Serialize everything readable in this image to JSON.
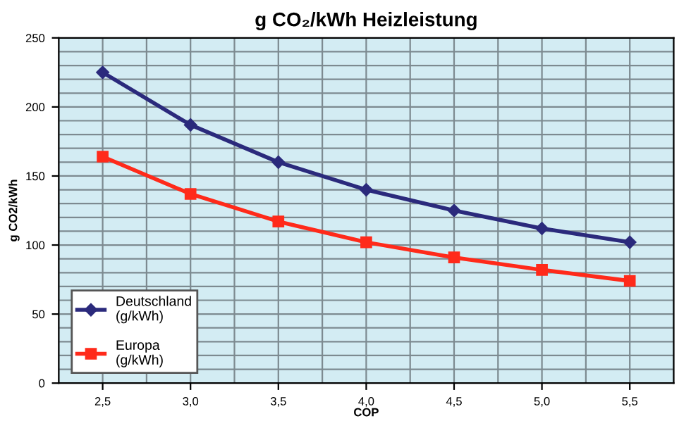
{
  "chart_data": {
    "type": "line",
    "title": "g CO₂/kWh Heizleistung",
    "xlabel": "COP",
    "ylabel": "g CO2/kWh",
    "categories": [
      "2,5",
      "3,0",
      "3,5",
      "4,0",
      "4,5",
      "5,0",
      "5,5"
    ],
    "series": [
      {
        "name": "Deutschland\n(g/kWh)",
        "color": "#2b2a7c",
        "marker": "diamond",
        "values": [
          225,
          187,
          160,
          140,
          125,
          112,
          102
        ]
      },
      {
        "name": "Europa\n(g/kWh)",
        "color": "#ff2a1a",
        "marker": "square",
        "values": [
          164,
          137,
          117,
          102,
          91,
          82,
          74
        ]
      }
    ],
    "ylim": [
      0,
      250
    ],
    "yticks": [
      0,
      50,
      100,
      150,
      200,
      250
    ],
    "grid": true,
    "legend": "bottom left",
    "line_style": "solid"
  }
}
